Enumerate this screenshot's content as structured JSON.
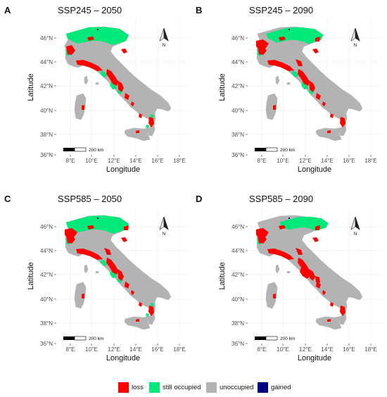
{
  "panels": [
    {
      "letter": "A",
      "title": "SSP245 – 2050",
      "green": 1.0,
      "red": 0.85
    },
    {
      "letter": "B",
      "title": "SSP245 – 2090",
      "green": 0.8,
      "red": 1.0
    },
    {
      "letter": "C",
      "title": "SSP585 – 2050",
      "green": 1.0,
      "red": 1.0
    },
    {
      "letter": "D",
      "title": "SSP585 – 2090",
      "green": 0.5,
      "red": 1.5
    }
  ],
  "axes": {
    "xlabel": "Longitude",
    "ylabel": "Latitude",
    "x_ticks": [
      "8°E",
      "10°E",
      "12°E",
      "14°E",
      "16°E",
      "18°E"
    ],
    "y_ticks": [
      "46°N",
      "44°N",
      "42°N",
      "40°N",
      "38°N",
      "36°N"
    ]
  },
  "north_arrow_label": "N",
  "scalebar_label": "200 km",
  "legend": [
    {
      "label": "loss",
      "color": "#ff0000"
    },
    {
      "label": "still occupied",
      "color": "#00e87a"
    },
    {
      "label": "unoccupied",
      "color": "#b3b3b3"
    },
    {
      "label": "gained",
      "color": "#000080"
    }
  ],
  "colors": {
    "loss": "#ff0000",
    "still_occupied": "#00e87a",
    "unoccupied": "#b3b3b3",
    "gained": "#000080",
    "grid": "#ebebeb"
  }
}
